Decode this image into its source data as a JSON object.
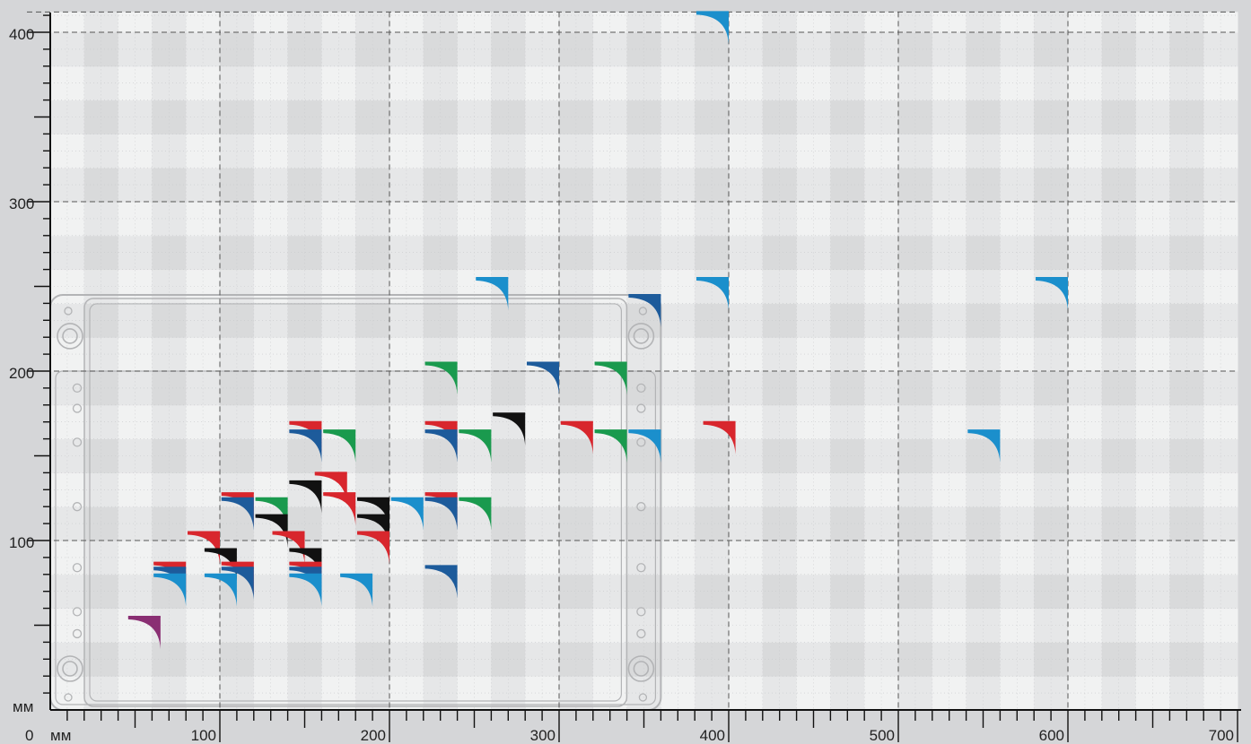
{
  "colors": {
    "background": "#d5d6d8",
    "cell_light": "#f1f2f2",
    "cell_mid": "#e6e7e8",
    "cell_dark": "#d9dadb",
    "enclosure_outline": "#b3b4b6",
    "blue": "#1b8fcc",
    "navy": "#1d5b9b",
    "green": "#1a9a4e",
    "red": "#d8262d",
    "black": "#111111",
    "purple": "#8a2f73"
  },
  "chart_data": {
    "type": "scatter",
    "title": "",
    "unit_x": "мм",
    "unit_y": "мм",
    "origin_label": "0",
    "xlim": [
      0,
      700
    ],
    "ylim": [
      0,
      410
    ],
    "x_major_ticks": [
      100,
      200,
      300,
      400,
      500,
      600,
      700
    ],
    "y_major_ticks": [
      100,
      200,
      300,
      400
    ],
    "x_tick_labels": [
      "100",
      "200",
      "300",
      "400",
      "500",
      "600",
      "700"
    ],
    "y_tick_labels": [
      "100",
      "200",
      "300",
      "400"
    ],
    "grid": "dashed major every 100 mm, checkered 20 mm cells",
    "enclosure": {
      "x": [
        0,
        360
      ],
      "y": [
        0,
        245
      ],
      "icon": "enclosure-outline"
    },
    "marker": "quarter-arc corner (width x height in mm)",
    "points": [
      {
        "w": 400,
        "h": 412,
        "color": "blue"
      },
      {
        "w": 270,
        "h": 255,
        "color": "blue"
      },
      {
        "w": 400,
        "h": 255,
        "color": "blue"
      },
      {
        "w": 600,
        "h": 255,
        "color": "blue"
      },
      {
        "w": 360,
        "h": 245,
        "color": "navy"
      },
      {
        "w": 240,
        "h": 205,
        "color": "green"
      },
      {
        "w": 300,
        "h": 205,
        "color": "navy"
      },
      {
        "w": 340,
        "h": 205,
        "color": "green"
      },
      {
        "w": 280,
        "h": 175,
        "color": "black"
      },
      {
        "w": 160,
        "h": 170,
        "color": "red"
      },
      {
        "w": 160,
        "h": 165,
        "color": "navy"
      },
      {
        "w": 180,
        "h": 165,
        "color": "green"
      },
      {
        "w": 240,
        "h": 170,
        "color": "red"
      },
      {
        "w": 240,
        "h": 165,
        "color": "navy"
      },
      {
        "w": 260,
        "h": 165,
        "color": "green"
      },
      {
        "w": 320,
        "h": 170,
        "color": "red"
      },
      {
        "w": 340,
        "h": 165,
        "color": "green"
      },
      {
        "w": 360,
        "h": 165,
        "color": "blue"
      },
      {
        "w": 404,
        "h": 170,
        "color": "red"
      },
      {
        "w": 560,
        "h": 165,
        "color": "blue"
      },
      {
        "w": 160,
        "h": 135,
        "color": "black"
      },
      {
        "w": 175,
        "h": 140,
        "color": "red"
      },
      {
        "w": 120,
        "h": 128,
        "color": "red"
      },
      {
        "w": 120,
        "h": 125,
        "color": "navy"
      },
      {
        "w": 140,
        "h": 125,
        "color": "green"
      },
      {
        "w": 140,
        "h": 115,
        "color": "black"
      },
      {
        "w": 180,
        "h": 128,
        "color": "red"
      },
      {
        "w": 200,
        "h": 125,
        "color": "black"
      },
      {
        "w": 200,
        "h": 115,
        "color": "black"
      },
      {
        "w": 220,
        "h": 125,
        "color": "blue"
      },
      {
        "w": 240,
        "h": 128,
        "color": "red"
      },
      {
        "w": 240,
        "h": 125,
        "color": "navy"
      },
      {
        "w": 260,
        "h": 125,
        "color": "green"
      },
      {
        "w": 100,
        "h": 105,
        "color": "red"
      },
      {
        "w": 150,
        "h": 105,
        "color": "red"
      },
      {
        "w": 200,
        "h": 105,
        "color": "red"
      },
      {
        "w": 110,
        "h": 95,
        "color": "black"
      },
      {
        "w": 160,
        "h": 95,
        "color": "black"
      },
      {
        "w": 80,
        "h": 87,
        "color": "red"
      },
      {
        "w": 80,
        "h": 84,
        "color": "navy"
      },
      {
        "w": 80,
        "h": 80,
        "color": "blue"
      },
      {
        "w": 120,
        "h": 87,
        "color": "red"
      },
      {
        "w": 120,
        "h": 84,
        "color": "navy"
      },
      {
        "w": 110,
        "h": 80,
        "color": "blue"
      },
      {
        "w": 160,
        "h": 87,
        "color": "red"
      },
      {
        "w": 160,
        "h": 84,
        "color": "navy"
      },
      {
        "w": 160,
        "h": 80,
        "color": "blue"
      },
      {
        "w": 190,
        "h": 80,
        "color": "blue"
      },
      {
        "w": 240,
        "h": 85,
        "color": "navy"
      },
      {
        "w": 65,
        "h": 55,
        "color": "purple"
      }
    ]
  }
}
